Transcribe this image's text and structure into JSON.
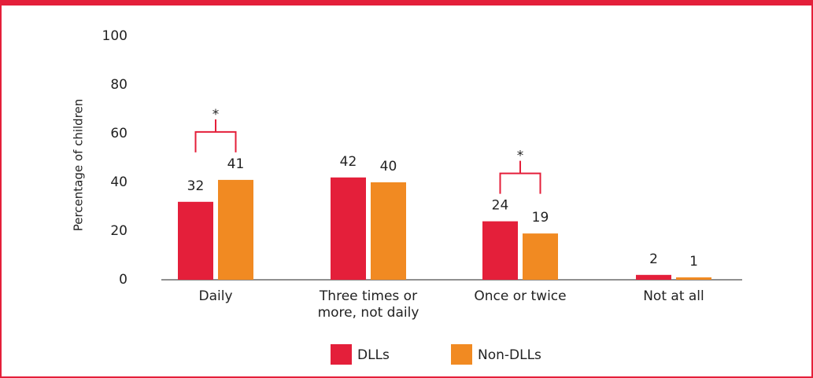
{
  "chart_data": {
    "type": "bar",
    "y_label": "Percentage of children",
    "categories": [
      "Daily",
      "Three times or more, not daily",
      "Once or twice",
      "Not at all"
    ],
    "series": [
      {
        "name": "DLLs",
        "color": "#e41f3a",
        "values": [
          32,
          42,
          24,
          2
        ]
      },
      {
        "name": "Non-DLLs",
        "color": "#f18a22",
        "values": [
          41,
          40,
          19,
          1
        ]
      }
    ],
    "annotations": [
      "*",
      "*"
    ],
    "ylim": [
      0,
      100
    ],
    "yticks": [
      0,
      20,
      40,
      60,
      80,
      100
    ],
    "grid": false
  }
}
